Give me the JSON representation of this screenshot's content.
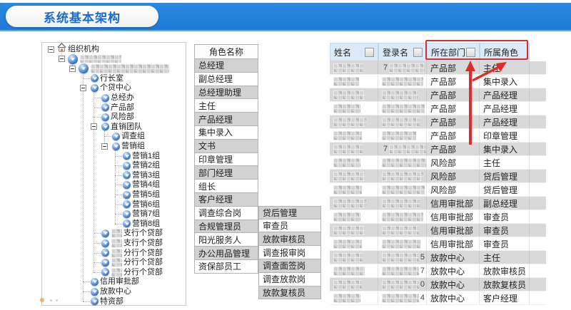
{
  "banner": {
    "title": "系统基本架构"
  },
  "tree": {
    "items": [
      {
        "label": "组织机构",
        "level": 0,
        "icon": "home",
        "expander": true
      },
      {
        "label": "",
        "level": 1,
        "icon": "org",
        "expander": true,
        "blur_width": 58
      },
      {
        "label": "",
        "level": 2,
        "icon": "org",
        "expander": true,
        "blur_width": 110
      },
      {
        "label": "行长室",
        "level": 3,
        "icon": "org"
      },
      {
        "label": "个贷中心",
        "level": 3,
        "icon": "org",
        "expander": true
      },
      {
        "label": "总经办",
        "level": 4,
        "icon": "org"
      },
      {
        "label": "产品部",
        "level": 4,
        "icon": "org"
      },
      {
        "label": "风险部",
        "level": 4,
        "icon": "org"
      },
      {
        "label": "直销团队",
        "level": 4,
        "icon": "org",
        "expander": true
      },
      {
        "label": "调查组",
        "level": 5,
        "icon": "org"
      },
      {
        "label": "营销组",
        "level": 5,
        "icon": "org",
        "expander": true
      },
      {
        "label": "营销1组",
        "level": 6,
        "icon": "org"
      },
      {
        "label": "营销2组",
        "level": 6,
        "icon": "org"
      },
      {
        "label": "营销3组",
        "level": 6,
        "icon": "org"
      },
      {
        "label": "营销4组",
        "level": 6,
        "icon": "org"
      },
      {
        "label": "营销5组",
        "level": 6,
        "icon": "org"
      },
      {
        "label": "营销6组",
        "level": 6,
        "icon": "org"
      },
      {
        "label": "营销7组",
        "level": 6,
        "icon": "org"
      },
      {
        "label": "营销8组",
        "level": 6,
        "icon": "org"
      },
      {
        "label": "支行个贷部",
        "level": 4,
        "icon": "org",
        "blur_prefix": 15
      },
      {
        "label": "支行个贷部",
        "level": 4,
        "icon": "org",
        "blur_prefix": 15
      },
      {
        "label": "分行个贷部",
        "level": 4,
        "icon": "org",
        "blur_prefix": 15
      },
      {
        "label": "分行个贷部",
        "level": 4,
        "icon": "org",
        "blur_prefix": 15
      },
      {
        "label": "分行个贷部",
        "level": 4,
        "icon": "org",
        "blur_prefix": 15
      },
      {
        "label": "信用审批部",
        "level": 3,
        "icon": "org"
      },
      {
        "label": "放款中心",
        "level": 3,
        "icon": "org"
      },
      {
        "label": "特资部",
        "level": 3,
        "icon": "org"
      }
    ]
  },
  "roles": {
    "header": "角色名称",
    "column1": [
      "总经理",
      "副总经理",
      "总经理助理",
      "主任",
      "产品经理",
      "集中录入",
      "文书",
      "印章管理",
      "部门经理",
      "组长",
      "客户经理",
      "调查综合岗",
      "合规管理员",
      "阳光服务人",
      "办公用品管理",
      "资保部员工"
    ],
    "column2": [
      "贷后管理",
      "审查员",
      "放款审核员",
      "调查报审岗",
      "调查面签岗",
      "调查放款岗",
      "放款复核员"
    ],
    "column2_start_row": 11
  },
  "table": {
    "columns": [
      {
        "label": "姓名",
        "filter_box": true
      },
      {
        "label": "登录名",
        "filter_box": true
      },
      {
        "label": "所在部门",
        "filter_box": true
      },
      {
        "label": "所属角色",
        "filter_box": false
      }
    ],
    "rows": [
      {
        "name_blur": 42,
        "login_prefix": "7",
        "login_blur": 50,
        "dept": "产品部",
        "role": "主任"
      },
      {
        "name_blur": 36,
        "login_blur": 58,
        "dept": "产品部",
        "role": "集中录入"
      },
      {
        "name_blur": 44,
        "login_blur": 50,
        "dept": "产品部",
        "role": "产品经理"
      },
      {
        "name_blur": 38,
        "login_blur": 60,
        "dept": "产品部",
        "role": "产品经理"
      },
      {
        "name_blur": 46,
        "login_blur": 54,
        "dept": "产品部",
        "role": "产品经理"
      },
      {
        "name_blur": 40,
        "login_blur": 48,
        "dept": "产品部",
        "role": "印章管理"
      },
      {
        "name_blur": 42,
        "login_prefix": "7",
        "login_blur": 56,
        "dept": "产品部",
        "role": "集中录入"
      },
      {
        "name_blur": 38,
        "login_blur": 64,
        "dept": "风险部",
        "role": "主任"
      },
      {
        "name_blur": 44,
        "login_blur": 58,
        "dept": "风险部",
        "role": "贷后管理"
      },
      {
        "name_blur": 40,
        "login_blur": 60,
        "dept": "风险部",
        "role": "贷后管理"
      },
      {
        "name_blur": 46,
        "login_blur": 54,
        "dept": "信用审批部",
        "role": "副总经理"
      },
      {
        "name_blur": 38,
        "login_blur": 58,
        "dept": "信用审批部",
        "role": "审查员"
      },
      {
        "name_blur": 44,
        "login_blur": 52,
        "dept": "信用审批部",
        "role": "审查员"
      },
      {
        "name_blur": 40,
        "login_blur": 55,
        "dept": "信用审批部",
        "role": "审查员"
      },
      {
        "name_blur": 42,
        "login_blur": 56,
        "login_suffix": "5",
        "dept": "放款中心",
        "role": "主任"
      },
      {
        "name_blur": 44,
        "login_blur": 54,
        "login_suffix": "7",
        "dept": "放款中心",
        "role": "放款审核员"
      },
      {
        "name_blur": 40,
        "login_blur": 58,
        "login_suffix": "0",
        "dept": "放款中心",
        "role": "放款复核员"
      },
      {
        "name_blur": 38,
        "login_blur": 60,
        "login_suffix": "4",
        "dept": "放款中心",
        "role": "客户经理"
      }
    ]
  },
  "annotations": {
    "highlighted_columns": [
      "所在部门",
      "所属角色"
    ],
    "highlight_color": "#e02b2b"
  },
  "colors": {
    "banner_blue": "#1e7bd6",
    "title_text": "#1a6dc8",
    "table_header_bg": "#dceaf8",
    "table_row_gray": "#d9d9d9",
    "role_row_gray": "#d2d2d2",
    "annotation_red": "#e02b2b"
  }
}
